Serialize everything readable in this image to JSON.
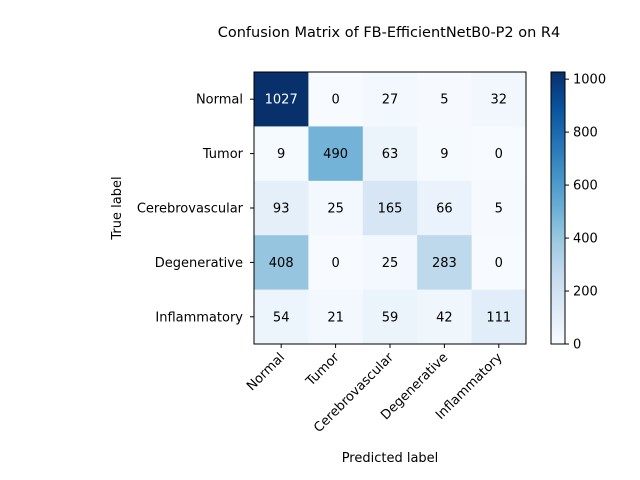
{
  "chart_data": {
    "type": "heatmap",
    "title": "Confusion Matrix of FB-EfficientNetB0-P2 on R4",
    "xlabel": "Predicted label",
    "ylabel": "True label",
    "x_categories": [
      "Normal",
      "Tumor",
      "Cerebrovascular",
      "Degenerative",
      "Inflammatory"
    ],
    "y_categories": [
      "Normal",
      "Tumor",
      "Cerebrovascular",
      "Degenerative",
      "Inflammatory"
    ],
    "values": [
      [
        1027,
        0,
        27,
        5,
        32
      ],
      [
        9,
        490,
        63,
        9,
        0
      ],
      [
        93,
        25,
        165,
        66,
        5
      ],
      [
        408,
        0,
        25,
        283,
        0
      ],
      [
        54,
        21,
        59,
        42,
        111
      ]
    ],
    "colormap": "Blues",
    "colorbar": {
      "vmin": 0,
      "vmax": 1027,
      "ticks": [
        0,
        200,
        400,
        600,
        800,
        1000
      ]
    }
  }
}
